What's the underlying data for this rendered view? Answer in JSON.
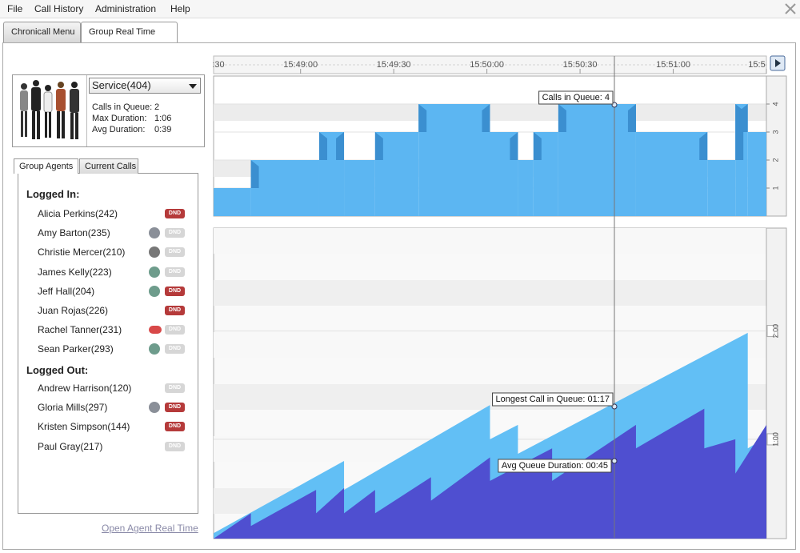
{
  "menu": [
    "File",
    "Call History",
    "Administration",
    "Help"
  ],
  "tabs": [
    "Chronicall Menu",
    "Group Real Time"
  ],
  "service": {
    "selected": "Service(404)",
    "stats": [
      [
        "Calls in Queue:",
        "2"
      ],
      [
        "Max Duration:",
        "1:06"
      ],
      [
        "Avg Duration:",
        "0:39"
      ]
    ]
  },
  "panel_tabs": [
    "Group Agents",
    "Current Calls"
  ],
  "logged_in_heading": "Logged In:",
  "logged_in": [
    "Alicia Perkins(242)",
    "Amy Barton(235)",
    "Christie Mercer(210)",
    "James Kelly(223)",
    "Jeff Hall(204)",
    "Juan Rojas(226)",
    "Rachel Tanner(231)",
    "Sean Parker(293)"
  ],
  "logged_out_heading": "Logged Out:",
  "logged_out": [
    "Andrew Harrison(120)",
    "Gloria Mills(297)",
    "Kristen Simpson(144)",
    "Paul Gray(217)"
  ],
  "dnd_label": "DND",
  "link": "Open Agent Real Time",
  "time_axis": {
    "xlim": [
      "15:48:32",
      "15:51:30"
    ],
    "xticks": [
      {
        "value": "15:48:30",
        "label": ":30"
      },
      {
        "value": "15:49:00",
        "label": "15:49:00"
      },
      {
        "value": "15:49:30",
        "label": "15:49:30"
      },
      {
        "value": "15:50:00",
        "label": "15:50:00"
      },
      {
        "value": "15:50:30",
        "label": "15:50:30"
      },
      {
        "value": "15:51:00",
        "label": "15:51:00"
      },
      {
        "value": "15:51:30",
        "label": "15:5"
      }
    ]
  },
  "chart_data": [
    {
      "type": "step",
      "color": "#5cb6f2",
      "x": [
        "15:48:32",
        "15:48:44",
        "15:49:06",
        "15:49:14",
        "15:49:24",
        "15:49:38",
        "15:50:01",
        "15:50:10",
        "15:50:15",
        "15:50:23",
        "15:50:48",
        "15:51:11",
        "15:51:20",
        "15:51:24"
      ],
      "values": [
        1,
        2,
        3,
        2,
        3,
        4,
        3,
        2,
        3,
        4,
        3,
        2,
        4,
        3
      ],
      "ylim": [
        0,
        5
      ],
      "yticks": [
        1,
        2,
        3,
        4
      ],
      "annotations": [
        "Calls in Queue: 4"
      ]
    },
    {
      "type": "area",
      "series": [
        {
          "color": "#62bff5",
          "x": [
            "15:48:32",
            "15:49:14",
            "15:49:14",
            "15:50:01",
            "15:50:01",
            "15:50:10",
            "15:50:10",
            "15:51:24",
            "15:51:24",
            "15:51:30"
          ],
          "values": [
            8,
            48,
            32,
            79,
            60,
            68,
            52,
            119,
            55,
            61
          ]
        },
        {
          "color": "#4f4fd0",
          "x": [
            "15:48:32",
            "15:48:44",
            "15:48:44",
            "15:49:05",
            "15:49:05",
            "15:49:14",
            "15:49:14",
            "15:49:24",
            "15:49:24",
            "15:49:42",
            "15:49:42",
            "15:50:01",
            "15:50:01",
            "15:50:21",
            "15:50:21",
            "15:50:48",
            "15:50:48",
            "15:51:10",
            "15:51:10",
            "15:51:20",
            "15:51:20",
            "15:51:30"
          ],
          "values": [
            5,
            19,
            12,
            32,
            19,
            33,
            19,
            32,
            19,
            39,
            26,
            50,
            37,
            55,
            37,
            68,
            55,
            77,
            55,
            60,
            41,
            68
          ]
        }
      ],
      "ylim": [
        5,
        177
      ],
      "yticks": [
        {
          "value": 60,
          "label": "1:00"
        },
        {
          "value": 120,
          "label": "2:00"
        }
      ],
      "annotations": [
        "Longest Call in Queue: 01:17",
        "Avg Queue Duration: 00:45"
      ]
    }
  ]
}
